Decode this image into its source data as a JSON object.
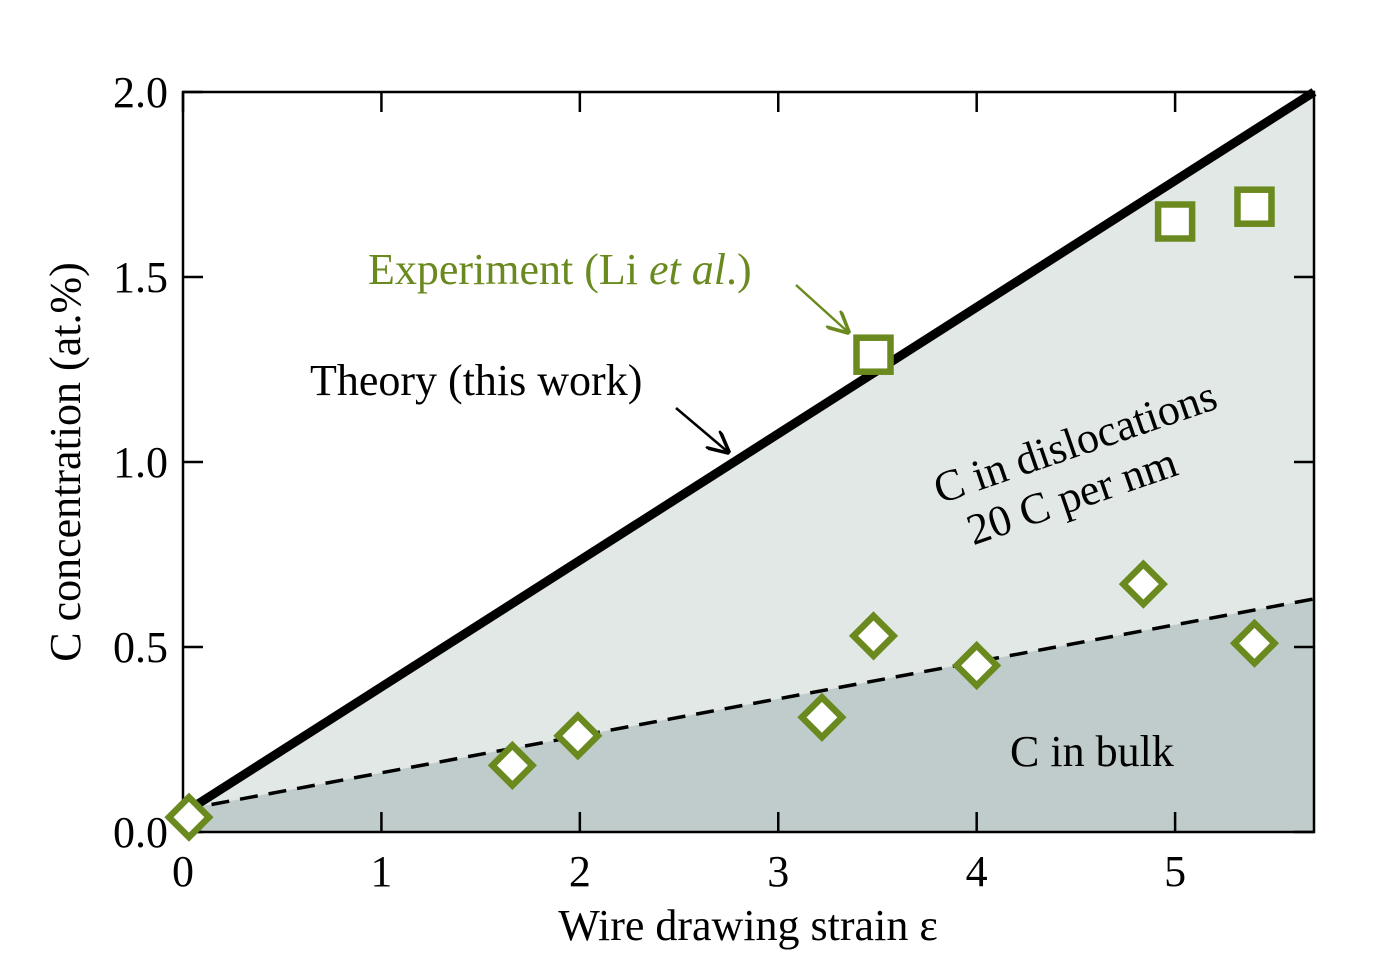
{
  "colors": {
    "dislocation_region": "#e1e8e6",
    "bulk_region": "#c0cccb",
    "theory_line": "#000000",
    "bulk_line": "#000000",
    "experiment_marker": "#6a8a1f",
    "annotation_text": "#000000",
    "experiment_label": "#6a8a1f"
  },
  "chart_data": {
    "type": "scatter",
    "xlabel": "Wire drawing strain ε",
    "ylabel": "C concentration (at.%)",
    "xlim": [
      0,
      5.7
    ],
    "ylim": [
      0,
      2.0
    ],
    "x_ticks": [
      {
        "value": 0,
        "label": "0"
      },
      {
        "value": 1,
        "label": "1"
      },
      {
        "value": 2,
        "label": "2"
      },
      {
        "value": 3,
        "label": "3"
      },
      {
        "value": 4,
        "label": "4"
      },
      {
        "value": 5,
        "label": "5"
      }
    ],
    "y_ticks": [
      {
        "value": 0,
        "label": "0.0"
      },
      {
        "value": 0.5,
        "label": "0.5"
      },
      {
        "value": 1.0,
        "label": "1.0"
      },
      {
        "value": 1.5,
        "label": "1.5"
      },
      {
        "value": 2.0,
        "label": "2.0"
      }
    ],
    "grid": false,
    "lines": [
      {
        "label": "Theory (this work)",
        "style": "solid",
        "x": [
          0,
          5.7
        ],
        "y": [
          0.05,
          2.0
        ]
      },
      {
        "label": "",
        "style": "dashed",
        "x": [
          0,
          5.7
        ],
        "y": [
          0.06,
          0.63
        ]
      }
    ],
    "series": [
      {
        "marker": "square",
        "x": [
          3.48,
          5.0,
          5.4
        ],
        "y": [
          1.29,
          1.65,
          1.69
        ]
      },
      {
        "marker": "diamond",
        "x": [
          0.03,
          1.66,
          1.99,
          3.22,
          3.48,
          4.0,
          4.84,
          5.4
        ],
        "y": [
          0.04,
          0.18,
          0.26,
          0.31,
          0.53,
          0.45,
          0.67,
          0.51
        ]
      }
    ],
    "annotations": {
      "experiment_label": {
        "prefix": "Experiment (Li ",
        "italic": "et al",
        "suffix": ".)"
      },
      "theory_label": "Theory (this work)",
      "dislocations_line1": "C in dislocations",
      "dislocations_line2": "20 C per nm",
      "bulk_label": "C in bulk"
    }
  }
}
